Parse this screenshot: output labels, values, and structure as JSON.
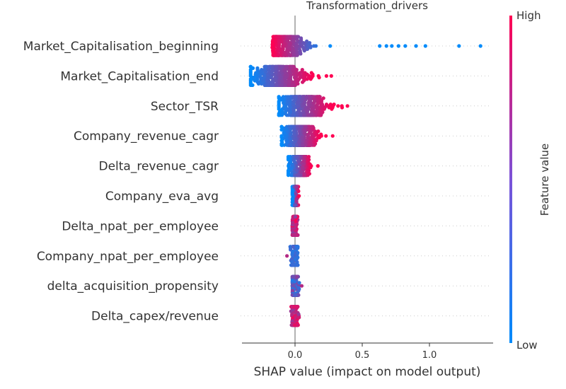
{
  "chart_data": {
    "type": "scatter",
    "subtype": "shap-beeswarm-summary",
    "title": "Transformation_drivers",
    "xlabel": "SHAP value (impact on model output)",
    "ylabel": "",
    "xlim": [
      -0.4,
      1.45
    ],
    "xticks": [
      {
        "value": 0.0,
        "label": "0.0"
      },
      {
        "value": 0.5,
        "label": "0.5"
      },
      {
        "value": 1.0,
        "label": "1.0"
      }
    ],
    "grid": false,
    "colorbar": {
      "label": "Feature value",
      "high_label": "High",
      "low_label": "Low",
      "low_color": "#008bfb",
      "high_color": "#ff0052"
    },
    "features": [
      {
        "name": "Market_Capitalisation_beginning",
        "shap_min": -0.17,
        "shap_max": 1.38,
        "outliers": [
          0.63,
          0.68,
          0.72,
          0.77,
          0.82,
          0.9,
          0.97,
          1.22,
          1.38
        ],
        "color_trend": "low_right"
      },
      {
        "name": "Market_Capitalisation_end",
        "shap_min": -0.33,
        "shap_max": 0.27,
        "outliers": [
          -0.33,
          0.27
        ],
        "color_trend": "high_right"
      },
      {
        "name": "Sector_TSR",
        "shap_min": -0.12,
        "shap_max": 0.39,
        "outliers": [
          0.29,
          0.32,
          0.35,
          0.39
        ],
        "color_trend": "high_right"
      },
      {
        "name": "Company_revenue_cagr",
        "shap_min": -0.1,
        "shap_max": 0.28,
        "outliers": [
          -0.1,
          0.23,
          0.28
        ],
        "color_trend": "high_right"
      },
      {
        "name": "Delta_revenue_cagr",
        "shap_min": -0.05,
        "shap_max": 0.17,
        "outliers": [
          0.17
        ],
        "color_trend": "high_right"
      },
      {
        "name": "Company_eva_avg",
        "shap_min": -0.02,
        "shap_max": 0.04,
        "outliers": [],
        "color_trend": "high_right"
      },
      {
        "name": "Delta_npat_per_employee",
        "shap_min": -0.02,
        "shap_max": 0.03,
        "outliers": [],
        "color_trend": "mixed_high"
      },
      {
        "name": "Company_npat_per_employee",
        "shap_min": -0.06,
        "shap_max": 0.02,
        "outliers": [
          -0.06
        ],
        "color_trend": "low"
      },
      {
        "name": "delta_acquisition_propensity",
        "shap_min": -0.02,
        "shap_max": 0.05,
        "outliers": [
          0.05
        ],
        "color_trend": "mixed_low"
      },
      {
        "name": "Delta_capex/revenue",
        "shap_min": -0.03,
        "shap_max": 0.03,
        "outliers": [],
        "color_trend": "mixed_high"
      }
    ]
  }
}
